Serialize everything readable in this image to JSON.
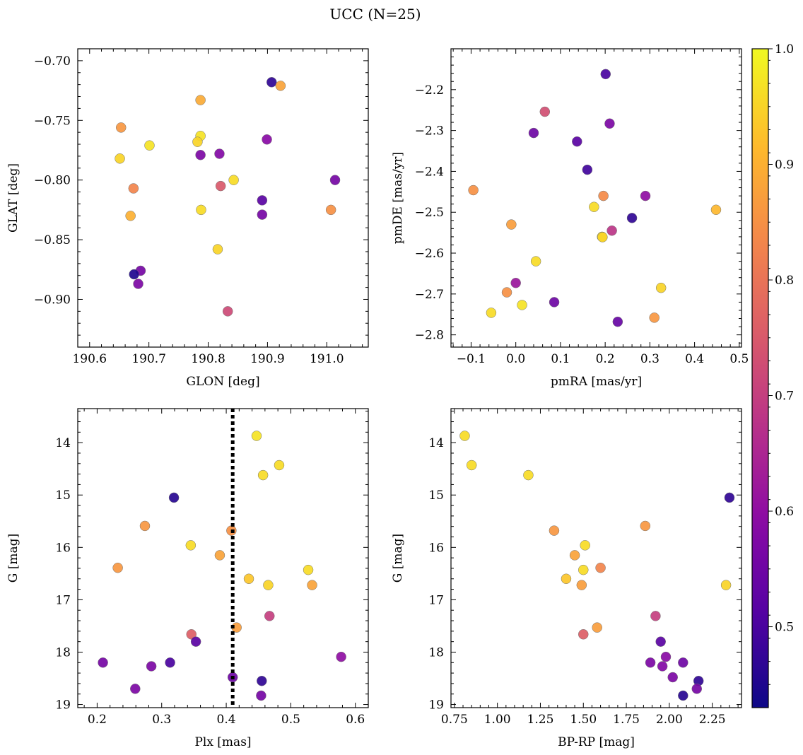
{
  "figure": {
    "title": "UCC (N=25)"
  },
  "colorbar": {
    "colormap": "plasma",
    "range": [
      0.43,
      1.0
    ],
    "ticks": [
      "0.5",
      "0.6",
      "0.7",
      "0.8",
      "0.9",
      "1.0"
    ]
  },
  "chart_data": [
    {
      "type": "scatter",
      "xlabel": "GLON [deg]",
      "ylabel": "GLAT [deg]",
      "xlim": [
        190.58,
        191.07
      ],
      "ylim": [
        -0.94,
        -0.69
      ],
      "y_inverted": false,
      "xticks": [
        "190.6",
        "190.7",
        "190.8",
        "190.9",
        "191.0"
      ],
      "yticks": [
        "−0.70",
        "−0.75",
        "−0.80",
        "−0.85",
        "−0.90"
      ],
      "x": [
        190.907,
        190.922,
        190.787,
        190.653,
        190.787,
        190.782,
        190.701,
        190.651,
        190.787,
        190.819,
        190.899,
        190.674,
        190.821,
        190.843,
        191.014,
        190.891,
        190.669,
        190.788,
        190.891,
        191.007,
        190.816,
        190.686,
        190.675,
        190.682,
        190.833
      ],
      "y": [
        -0.718,
        -0.721,
        -0.733,
        -0.756,
        -0.763,
        -0.768,
        -0.771,
        -0.782,
        -0.779,
        -0.778,
        -0.766,
        -0.807,
        -0.805,
        -0.8,
        -0.8,
        -0.817,
        -0.83,
        -0.825,
        -0.829,
        -0.825,
        -0.858,
        -0.876,
        -0.879,
        -0.887,
        -0.91
      ],
      "color_values": [
        0.47,
        0.88,
        0.89,
        0.86,
        0.97,
        0.95,
        0.97,
        0.95,
        0.57,
        0.58,
        0.59,
        0.83,
        0.75,
        0.96,
        0.56,
        0.52,
        0.9,
        0.96,
        0.56,
        0.85,
        0.95,
        0.56,
        0.45,
        0.57,
        0.72
      ]
    },
    {
      "type": "scatter",
      "xlabel": "pmRA [mas/yr]",
      "ylabel": "pmDE [mas/yr]",
      "xlim": [
        -0.145,
        0.505
      ],
      "ylim": [
        -2.83,
        -2.1
      ],
      "y_inverted": false,
      "xticks": [
        "−0.1",
        "0.0",
        "0.1",
        "0.2",
        "0.3",
        "0.4",
        "0.5"
      ],
      "yticks": [
        "−2.2",
        "−2.3",
        "−2.4",
        "−2.5",
        "−2.6",
        "−2.7",
        "−2.8"
      ],
      "x": [
        0.201,
        0.065,
        0.21,
        0.04,
        0.137,
        0.16,
        -0.095,
        0.196,
        0.29,
        0.175,
        0.448,
        0.26,
        -0.01,
        0.215,
        0.193,
        0.194,
        0.045,
        0.325,
        -0.02,
        0.0,
        0.014,
        0.086,
        -0.055,
        0.31,
        0.228
      ],
      "y": [
        -2.162,
        -2.254,
        -2.283,
        -2.306,
        -2.327,
        -2.396,
        -2.446,
        -2.46,
        -2.46,
        -2.487,
        -2.494,
        -2.514,
        -2.53,
        -2.545,
        -2.56,
        -2.561,
        -2.62,
        -2.685,
        -2.696,
        -2.673,
        -2.727,
        -2.72,
        -2.746,
        -2.758,
        -2.768
      ],
      "color_values": [
        0.5,
        0.73,
        0.57,
        0.55,
        0.52,
        0.49,
        0.85,
        0.84,
        0.6,
        0.96,
        0.91,
        0.47,
        0.87,
        0.68,
        0.97,
        0.95,
        0.96,
        0.95,
        0.85,
        0.62,
        0.97,
        0.55,
        0.96,
        0.86,
        0.54
      ]
    },
    {
      "type": "scatter",
      "xlabel": "Plx [mas]",
      "ylabel": "G [mag]",
      "xlim": [
        0.17,
        0.62
      ],
      "ylim": [
        19.06,
        13.35
      ],
      "y_inverted": true,
      "xticks": [
        "0.2",
        "0.3",
        "0.4",
        "0.5",
        "0.6"
      ],
      "yticks": [
        "14",
        "15",
        "16",
        "17",
        "18",
        "19"
      ],
      "vline": {
        "x": 0.41,
        "style": "dotted"
      },
      "x": [
        0.447,
        0.482,
        0.457,
        0.319,
        0.274,
        0.408,
        0.345,
        0.39,
        0.232,
        0.527,
        0.435,
        0.465,
        0.533,
        0.467,
        0.416,
        0.346,
        0.353,
        0.578,
        0.209,
        0.313,
        0.284,
        0.259,
        0.41,
        0.455,
        0.454
      ],
      "y": [
        13.87,
        14.43,
        14.62,
        15.05,
        15.59,
        15.68,
        15.96,
        16.15,
        16.39,
        16.43,
        16.6,
        16.72,
        16.72,
        17.31,
        17.53,
        17.66,
        17.8,
        18.09,
        18.2,
        18.2,
        18.27,
        18.7,
        18.48,
        18.55,
        18.83
      ],
      "color_values": [
        0.97,
        0.96,
        0.96,
        0.46,
        0.86,
        0.85,
        0.96,
        0.88,
        0.86,
        0.96,
        0.93,
        0.95,
        0.88,
        0.7,
        0.87,
        0.76,
        0.52,
        0.6,
        0.56,
        0.5,
        0.57,
        0.57,
        0.55,
        0.47,
        0.56
      ]
    },
    {
      "type": "scatter",
      "xlabel": "BP-RP [mag]",
      "ylabel": "G [mag]",
      "xlim": [
        0.73,
        2.42
      ],
      "ylim": [
        19.06,
        13.35
      ],
      "y_inverted": true,
      "xticks": [
        "0.75",
        "1.00",
        "1.25",
        "1.50",
        "1.75",
        "2.00",
        "2.25"
      ],
      "yticks": [
        "14",
        "15",
        "16",
        "17",
        "18",
        "19"
      ],
      "x": [
        0.81,
        0.85,
        1.18,
        2.35,
        1.86,
        1.33,
        1.51,
        1.45,
        1.6,
        1.5,
        1.4,
        1.49,
        2.33,
        1.92,
        1.58,
        1.5,
        1.95,
        1.89,
        2.08,
        1.96,
        1.98,
        2.02,
        2.17,
        2.16,
        2.08
      ],
      "y": [
        13.87,
        14.43,
        14.62,
        15.05,
        15.59,
        15.68,
        15.96,
        16.15,
        16.39,
        16.43,
        16.6,
        16.72,
        16.72,
        17.31,
        17.53,
        17.66,
        17.8,
        18.2,
        18.2,
        18.27,
        18.09,
        18.48,
        18.55,
        18.7,
        18.83
      ],
      "color_values": [
        0.96,
        0.96,
        0.96,
        0.47,
        0.86,
        0.86,
        0.96,
        0.88,
        0.83,
        0.96,
        0.93,
        0.87,
        0.95,
        0.7,
        0.87,
        0.76,
        0.52,
        0.57,
        0.55,
        0.58,
        0.59,
        0.57,
        0.47,
        0.56,
        0.46
      ]
    }
  ]
}
